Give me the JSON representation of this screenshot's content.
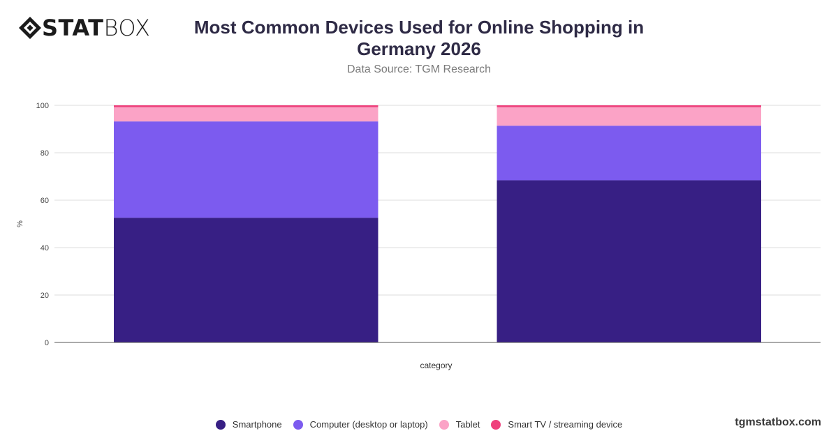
{
  "brand": {
    "logo_bold": "STAT",
    "logo_light": "BOX",
    "watermark": "tgmstatbox.com"
  },
  "header": {
    "title": "Most Common Devices Used for Online Shopping in Germany 2026",
    "subtitle": "Data Source: TGM Research"
  },
  "chart_data": {
    "type": "bar",
    "stacked": true,
    "categories": [
      "",
      ""
    ],
    "series": [
      {
        "name": "Smartphone",
        "color": "#371f84",
        "values": [
          52.6,
          68.4
        ]
      },
      {
        "name": "Computer (desktop or laptop)",
        "color": "#7c5bef",
        "values": [
          40.6,
          23.0
        ]
      },
      {
        "name": "Tablet",
        "color": "#fba3c6",
        "values": [
          6.0,
          7.8
        ]
      },
      {
        "name": "Smart TV / streaming device",
        "color": "#ef3f7b",
        "values": [
          0.8,
          0.8
        ]
      }
    ],
    "xlabel": "category",
    "ylabel": "%",
    "ylim": [
      0,
      100
    ],
    "yticks": [
      0,
      20,
      40,
      60,
      80,
      100
    ],
    "grid": true,
    "legend": "bottom"
  }
}
